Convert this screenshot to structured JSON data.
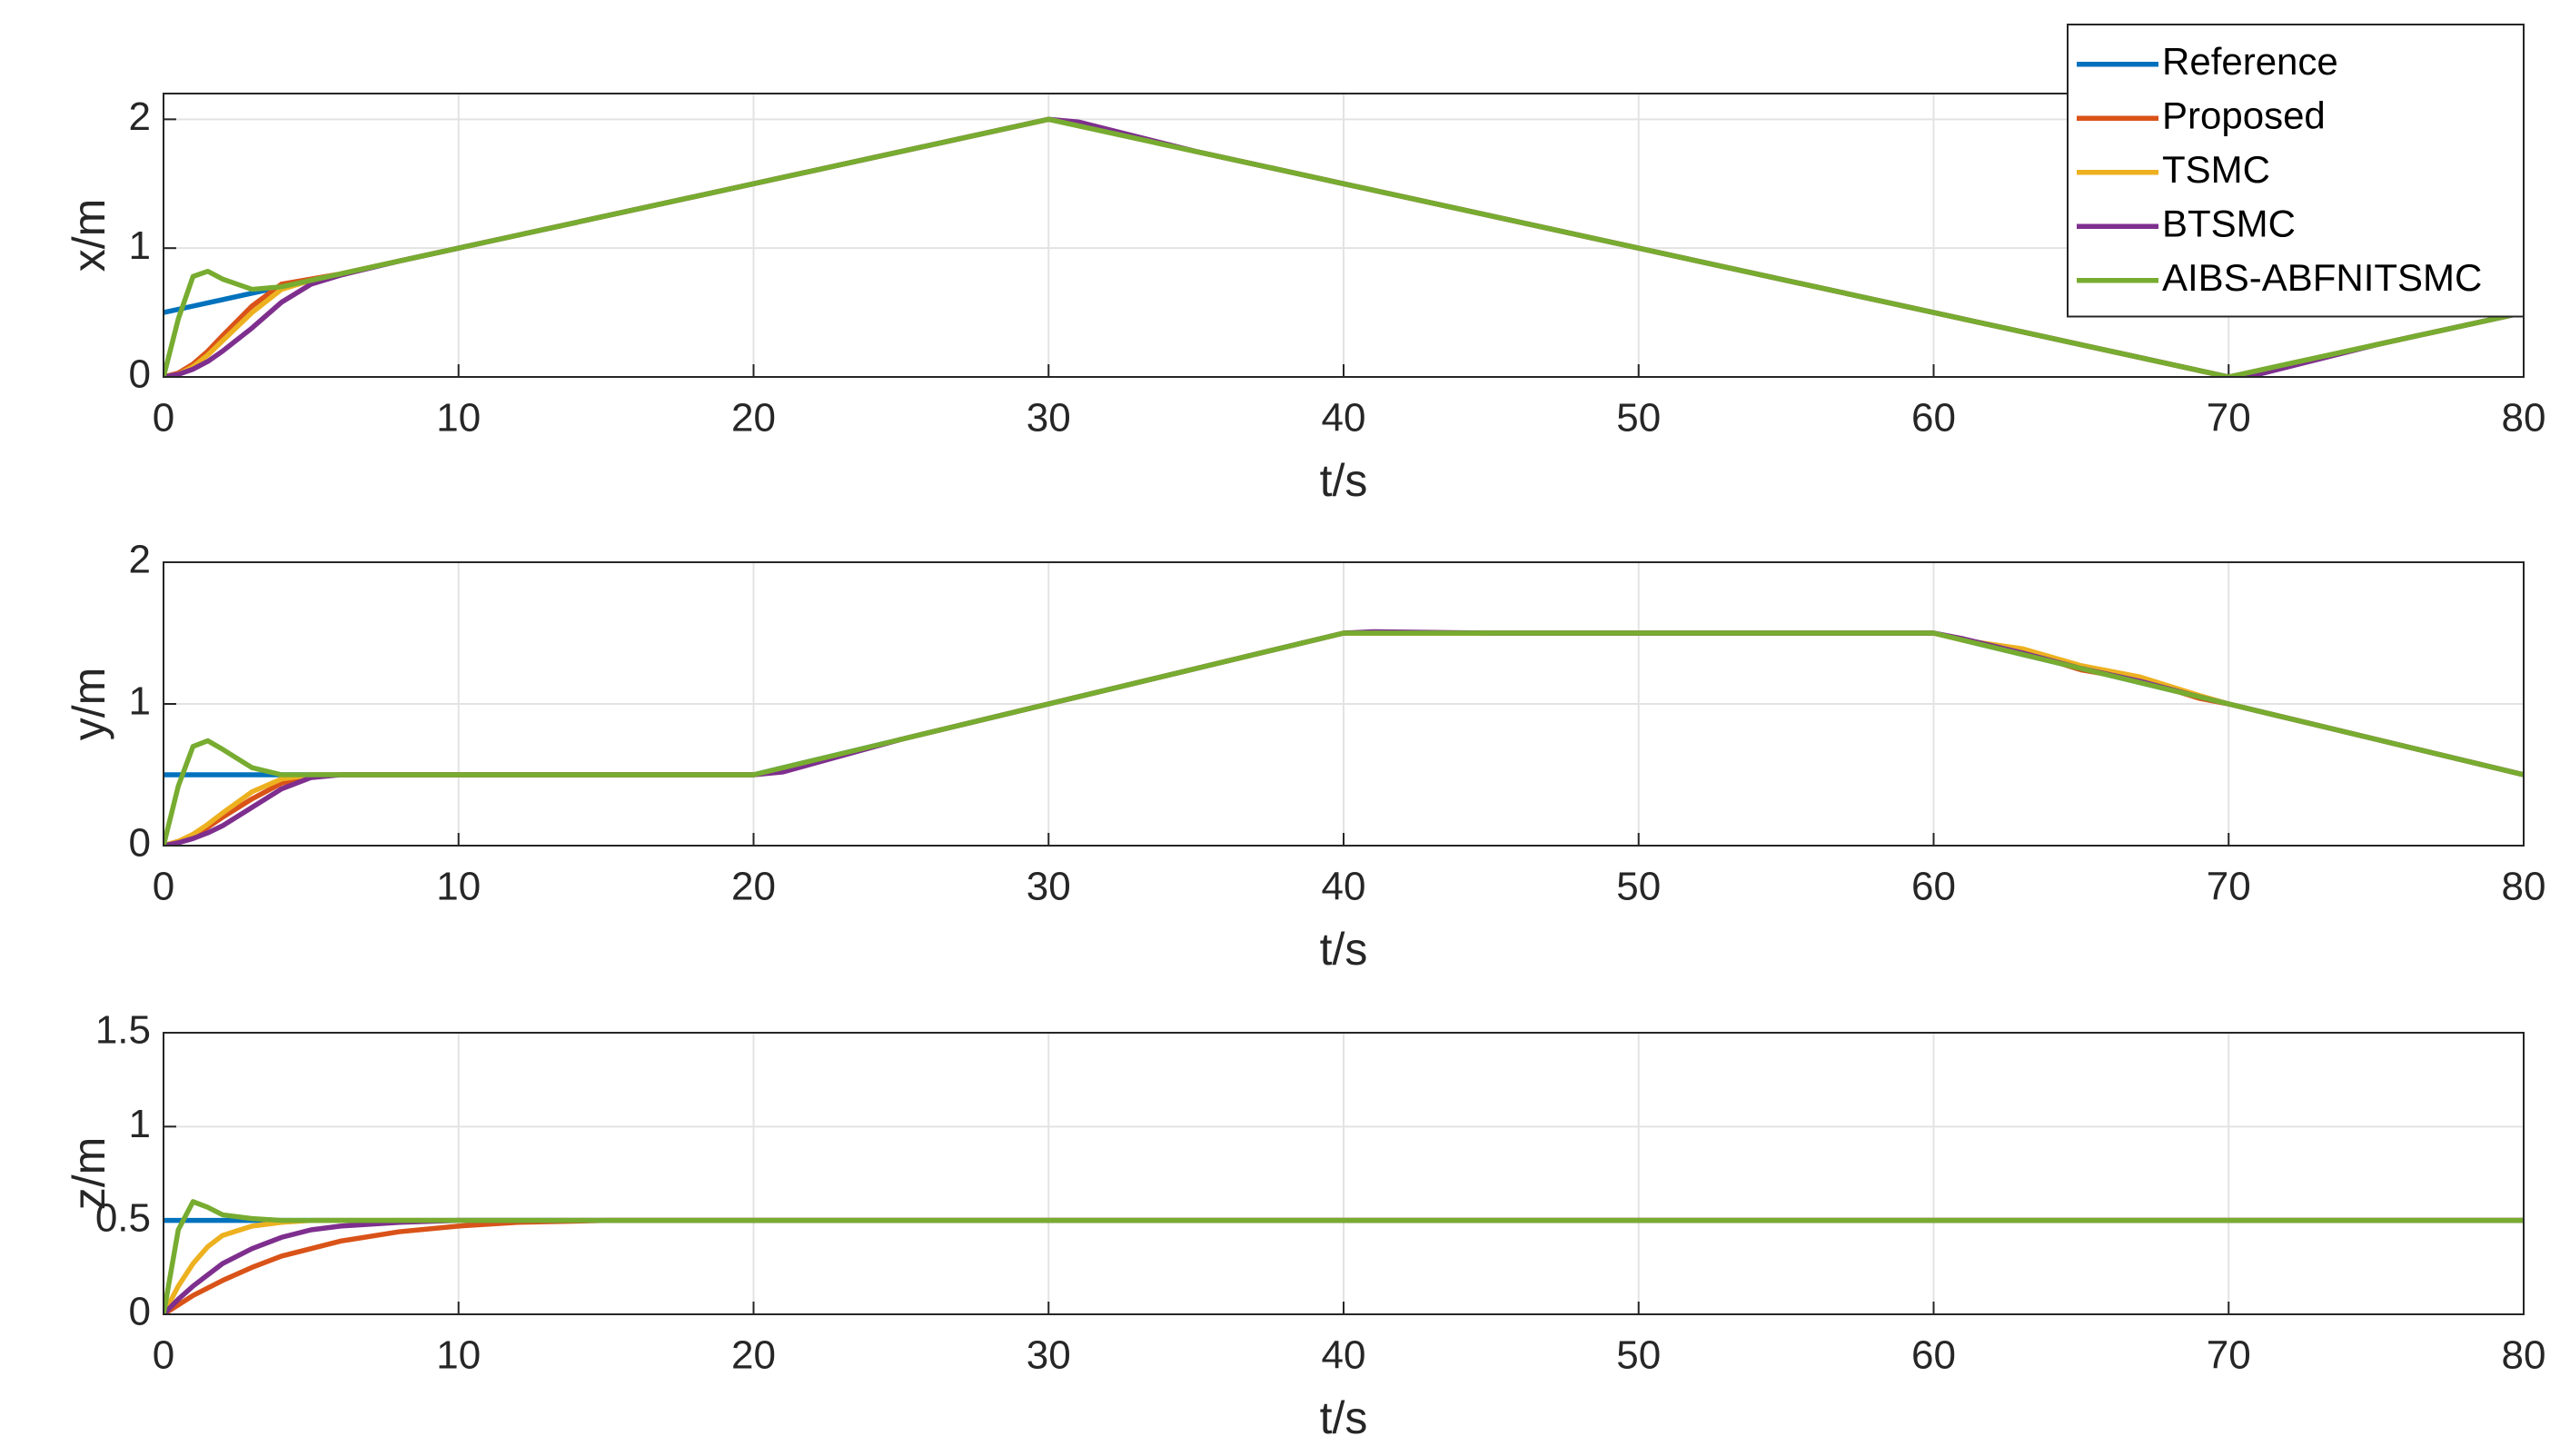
{
  "chart_data": [
    {
      "type": "line",
      "xlabel": "t/s",
      "ylabel": "x/m",
      "grid": true,
      "legend": "northeast",
      "x": [
        0,
        0.5,
        1,
        1.5,
        2,
        3,
        4,
        5,
        6,
        8,
        10,
        12,
        15,
        20,
        21,
        25,
        30,
        31,
        35,
        40,
        41,
        45,
        50,
        55,
        60,
        61,
        63,
        65,
        67,
        69,
        70,
        71,
        75,
        80
      ],
      "xlim": [
        0,
        80
      ],
      "xticks": [
        0,
        10,
        20,
        30,
        40,
        50,
        60,
        70,
        80
      ],
      "ylim": [
        0,
        2.2
      ],
      "yticks": [
        0,
        1,
        2
      ],
      "series": [
        {
          "name": "Reference",
          "color": "#0072BD",
          "values": [
            0.5,
            0.525,
            0.55,
            0.575,
            0.6,
            0.65,
            0.7,
            0.75,
            0.8,
            0.9,
            1,
            1.1,
            1.25,
            1.5,
            1.55,
            1.75,
            2,
            1.95,
            1.75,
            1.5,
            1.45,
            1.25,
            1,
            0.75,
            0.5,
            0.45,
            0.35,
            0.25,
            0.15,
            0.05,
            0,
            0.05,
            0.25,
            0.5
          ]
        },
        {
          "name": "Proposed",
          "color": "#D95319",
          "values": [
            0,
            0.03,
            0.1,
            0.2,
            0.32,
            0.55,
            0.72,
            0.76,
            0.8,
            0.9,
            1,
            1.1,
            1.25,
            1.5,
            1.55,
            1.75,
            2,
            1.96,
            1.75,
            1.5,
            1.45,
            1.25,
            1,
            0.75,
            0.5,
            0.45,
            0.35,
            0.25,
            0.15,
            0.05,
            0,
            0.03,
            0.25,
            0.5
          ]
        },
        {
          "name": "TSMC",
          "color": "#EDB120",
          "values": [
            0,
            0.02,
            0.08,
            0.17,
            0.28,
            0.5,
            0.68,
            0.75,
            0.8,
            0.9,
            1,
            1.1,
            1.25,
            1.5,
            1.55,
            1.75,
            2,
            1.95,
            1.75,
            1.5,
            1.45,
            1.25,
            1,
            0.75,
            0.5,
            0.45,
            0.35,
            0.25,
            0.15,
            0.05,
            0,
            0.05,
            0.25,
            0.5
          ]
        },
        {
          "name": "BTSMC",
          "color": "#7E2F8E",
          "values": [
            0,
            0.02,
            0.06,
            0.12,
            0.2,
            0.38,
            0.58,
            0.72,
            0.79,
            0.9,
            1,
            1.1,
            1.25,
            1.5,
            1.55,
            1.75,
            2,
            1.98,
            1.75,
            1.5,
            1.45,
            1.25,
            1,
            0.75,
            0.5,
            0.45,
            0.35,
            0.25,
            0.15,
            0.05,
            0,
            0.02,
            0.25,
            0.5
          ]
        },
        {
          "name": "AIBS-ABFNITSMC",
          "color": "#77AC30",
          "values": [
            0,
            0.45,
            0.78,
            0.82,
            0.76,
            0.68,
            0.7,
            0.75,
            0.8,
            0.9,
            1,
            1.1,
            1.25,
            1.5,
            1.55,
            1.75,
            2,
            1.95,
            1.75,
            1.5,
            1.45,
            1.25,
            1,
            0.75,
            0.5,
            0.45,
            0.35,
            0.25,
            0.15,
            0.05,
            0,
            0.05,
            0.25,
            0.5
          ]
        }
      ]
    },
    {
      "type": "line",
      "xlabel": "t/s",
      "ylabel": "y/m",
      "grid": true,
      "x": [
        0,
        0.5,
        1,
        1.5,
        2,
        3,
        4,
        5,
        6,
        8,
        10,
        12,
        15,
        20,
        21,
        25,
        30,
        31,
        35,
        40,
        41,
        45,
        50,
        55,
        60,
        61,
        63,
        65,
        67,
        69,
        70,
        71,
        75,
        80
      ],
      "xlim": [
        0,
        80
      ],
      "xticks": [
        0,
        10,
        20,
        30,
        40,
        50,
        60,
        70,
        80
      ],
      "ylim": [
        0,
        2
      ],
      "yticks": [
        0,
        1,
        2
      ],
      "series": [
        {
          "color": "#0072BD",
          "values": [
            0.5,
            0.5,
            0.5,
            0.5,
            0.5,
            0.5,
            0.5,
            0.5,
            0.5,
            0.5,
            0.5,
            0.5,
            0.5,
            0.5,
            0.55,
            0.75,
            1,
            1.05,
            1.25,
            1.5,
            1.5,
            1.5,
            1.5,
            1.5,
            1.5,
            1.45,
            1.35,
            1.25,
            1.15,
            1.05,
            1,
            0.95,
            0.75,
            0.5
          ]
        },
        {
          "color": "#D95319",
          "values": [
            0,
            0.03,
            0.07,
            0.13,
            0.2,
            0.33,
            0.44,
            0.49,
            0.5,
            0.5,
            0.5,
            0.5,
            0.5,
            0.5,
            0.53,
            0.75,
            1,
            1.05,
            1.25,
            1.5,
            1.5,
            1.5,
            1.5,
            1.5,
            1.5,
            1.45,
            1.37,
            1.24,
            1.17,
            1.04,
            1,
            0.95,
            0.75,
            0.5
          ]
        },
        {
          "color": "#EDB120",
          "values": [
            0,
            0.03,
            0.08,
            0.15,
            0.23,
            0.38,
            0.47,
            0.5,
            0.5,
            0.5,
            0.5,
            0.5,
            0.5,
            0.5,
            0.54,
            0.75,
            1,
            1.05,
            1.25,
            1.5,
            1.5,
            1.5,
            1.5,
            1.5,
            1.5,
            1.45,
            1.39,
            1.27,
            1.19,
            1.06,
            1,
            0.95,
            0.75,
            0.5
          ]
        },
        {
          "color": "#7E2F8E",
          "values": [
            0,
            0.02,
            0.05,
            0.09,
            0.14,
            0.27,
            0.4,
            0.48,
            0.5,
            0.5,
            0.5,
            0.5,
            0.5,
            0.5,
            0.52,
            0.75,
            1,
            1.05,
            1.25,
            1.5,
            1.51,
            1.5,
            1.5,
            1.5,
            1.5,
            1.46,
            1.36,
            1.25,
            1.16,
            1.05,
            1,
            0.95,
            0.75,
            0.5
          ]
        },
        {
          "color": "#77AC30",
          "values": [
            0,
            0.42,
            0.7,
            0.74,
            0.68,
            0.55,
            0.5,
            0.5,
            0.5,
            0.5,
            0.5,
            0.5,
            0.5,
            0.5,
            0.55,
            0.75,
            1,
            1.05,
            1.25,
            1.5,
            1.5,
            1.5,
            1.5,
            1.5,
            1.5,
            1.45,
            1.35,
            1.25,
            1.15,
            1.05,
            1,
            0.95,
            0.75,
            0.5
          ]
        }
      ]
    },
    {
      "type": "line",
      "xlabel": "t/s",
      "ylabel": "z/m",
      "grid": true,
      "x": [
        0,
        0.5,
        1,
        1.5,
        2,
        3,
        4,
        5,
        6,
        8,
        10,
        12,
        15,
        20,
        21,
        25,
        30,
        31,
        35,
        40,
        41,
        45,
        50,
        55,
        60,
        61,
        63,
        65,
        67,
        69,
        70,
        71,
        75,
        80
      ],
      "xlim": [
        0,
        80
      ],
      "xticks": [
        0,
        10,
        20,
        30,
        40,
        50,
        60,
        70,
        80
      ],
      "ylim": [
        0,
        1.5
      ],
      "yticks": [
        0,
        0.5,
        1,
        1.5
      ],
      "series": [
        {
          "color": "#0072BD",
          "values": [
            0.5,
            0.5,
            0.5,
            0.5,
            0.5,
            0.5,
            0.5,
            0.5,
            0.5,
            0.5,
            0.5,
            0.5,
            0.5,
            0.5,
            0.5,
            0.5,
            0.5,
            0.5,
            0.5,
            0.5,
            0.5,
            0.5,
            0.5,
            0.5,
            0.5,
            0.5,
            0.5,
            0.5,
            0.5,
            0.5,
            0.5,
            0.5,
            0.5,
            0.5
          ]
        },
        {
          "color": "#D95319",
          "values": [
            0,
            0.05,
            0.1,
            0.14,
            0.18,
            0.25,
            0.31,
            0.35,
            0.39,
            0.44,
            0.47,
            0.49,
            0.5,
            0.5,
            0.5,
            0.5,
            0.5,
            0.5,
            0.5,
            0.5,
            0.5,
            0.5,
            0.5,
            0.5,
            0.5,
            0.5,
            0.5,
            0.5,
            0.5,
            0.5,
            0.5,
            0.5,
            0.5,
            0.5
          ]
        },
        {
          "color": "#EDB120",
          "values": [
            0,
            0.15,
            0.27,
            0.36,
            0.42,
            0.47,
            0.49,
            0.5,
            0.5,
            0.5,
            0.5,
            0.5,
            0.5,
            0.5,
            0.5,
            0.5,
            0.5,
            0.5,
            0.5,
            0.5,
            0.5,
            0.5,
            0.5,
            0.5,
            0.5,
            0.5,
            0.5,
            0.5,
            0.5,
            0.5,
            0.5,
            0.5,
            0.5,
            0.5
          ]
        },
        {
          "color": "#7E2F8E",
          "values": [
            0,
            0.08,
            0.15,
            0.21,
            0.27,
            0.35,
            0.41,
            0.45,
            0.47,
            0.49,
            0.5,
            0.5,
            0.5,
            0.5,
            0.5,
            0.5,
            0.5,
            0.5,
            0.5,
            0.5,
            0.5,
            0.5,
            0.5,
            0.5,
            0.5,
            0.5,
            0.5,
            0.5,
            0.5,
            0.5,
            0.5,
            0.5,
            0.5,
            0.5
          ]
        },
        {
          "color": "#77AC30",
          "values": [
            0,
            0.45,
            0.6,
            0.57,
            0.53,
            0.51,
            0.5,
            0.5,
            0.5,
            0.5,
            0.5,
            0.5,
            0.5,
            0.5,
            0.5,
            0.5,
            0.5,
            0.5,
            0.5,
            0.5,
            0.5,
            0.5,
            0.5,
            0.5,
            0.5,
            0.5,
            0.5,
            0.5,
            0.5,
            0.5,
            0.5,
            0.5,
            0.5,
            0.5
          ]
        }
      ]
    }
  ]
}
